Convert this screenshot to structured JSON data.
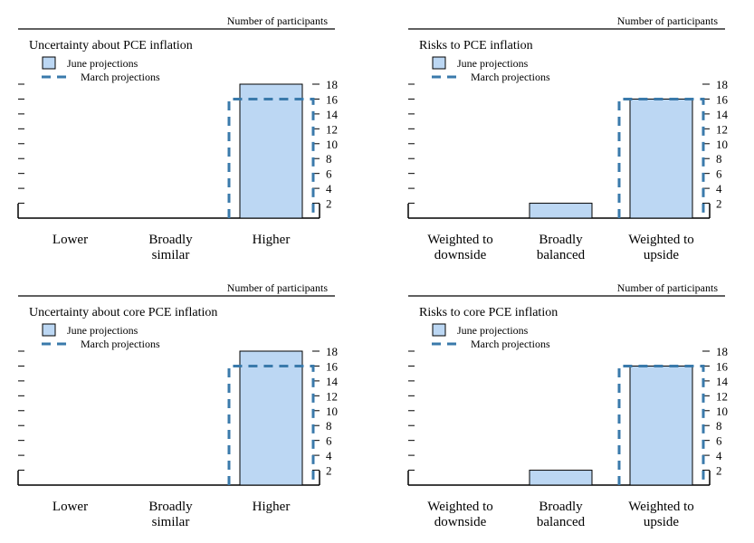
{
  "colors": {
    "june_fill": "#bcd7f3",
    "june_stroke": "#000000",
    "march_stroke": "#3a7aab",
    "axis": "#000000"
  },
  "legend": {
    "june": "June projections",
    "march": "March projections"
  },
  "units_label": "Number of participants",
  "y_ticks": [
    2,
    4,
    6,
    8,
    10,
    12,
    14,
    16,
    18
  ],
  "chart_data": [
    {
      "type": "bar",
      "title": "Uncertainty about PCE inflation",
      "categories": [
        [
          "Lower"
        ],
        [
          "Broadly",
          "similar"
        ],
        [
          "Higher"
        ]
      ],
      "series": [
        {
          "name": "June projections",
          "values": [
            0,
            0,
            18
          ]
        },
        {
          "name": "March projections",
          "values": [
            0,
            0,
            16
          ]
        }
      ],
      "ylabel": "Number of participants",
      "ylim": [
        0,
        18
      ]
    },
    {
      "type": "bar",
      "title": "Risks to PCE inflation",
      "categories": [
        [
          "Weighted to",
          "downside"
        ],
        [
          "Broadly",
          "balanced"
        ],
        [
          "Weighted to",
          "upside"
        ]
      ],
      "series": [
        {
          "name": "June projections",
          "values": [
            0,
            2,
            16
          ]
        },
        {
          "name": "March projections",
          "values": [
            0,
            0,
            16
          ]
        }
      ],
      "ylabel": "Number of participants",
      "ylim": [
        0,
        18
      ]
    },
    {
      "type": "bar",
      "title": "Uncertainty about core PCE inflation",
      "categories": [
        [
          "Lower"
        ],
        [
          "Broadly",
          "similar"
        ],
        [
          "Higher"
        ]
      ],
      "series": [
        {
          "name": "June projections",
          "values": [
            0,
            0,
            18
          ]
        },
        {
          "name": "March projections",
          "values": [
            0,
            0,
            16
          ]
        }
      ],
      "ylabel": "Number of participants",
      "ylim": [
        0,
        18
      ]
    },
    {
      "type": "bar",
      "title": "Risks to core PCE inflation",
      "categories": [
        [
          "Weighted to",
          "downside"
        ],
        [
          "Broadly",
          "balanced"
        ],
        [
          "Weighted to",
          "upside"
        ]
      ],
      "series": [
        {
          "name": "June projections",
          "values": [
            0,
            2,
            16
          ]
        },
        {
          "name": "March projections",
          "values": [
            0,
            0,
            16
          ]
        }
      ],
      "ylabel": "Number of participants",
      "ylim": [
        0,
        18
      ]
    }
  ]
}
